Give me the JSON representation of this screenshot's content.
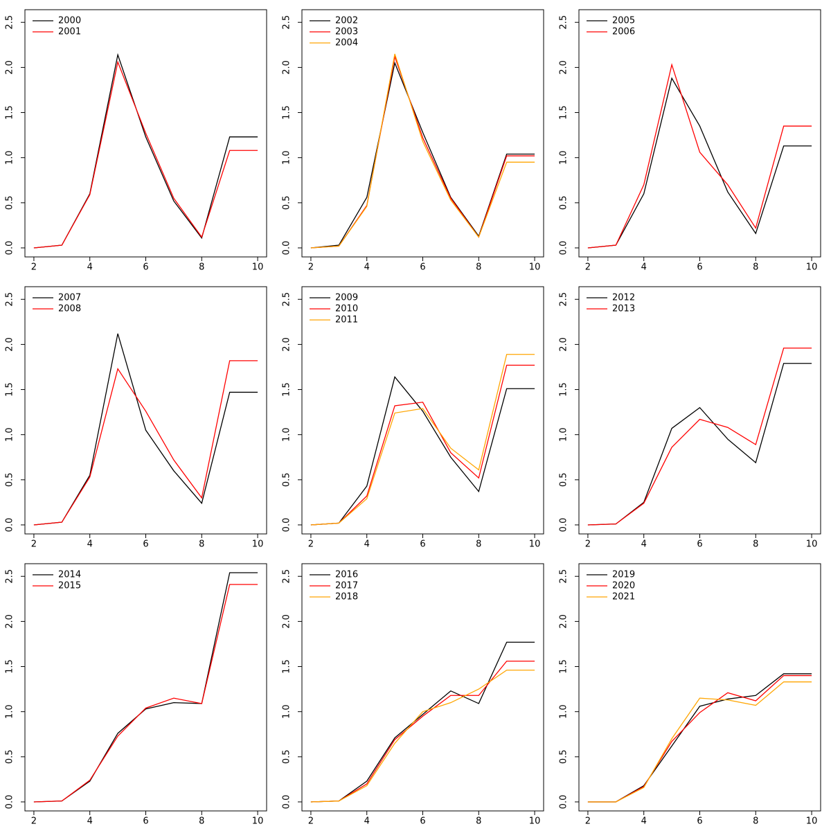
{
  "chart_data": [
    {
      "type": "line",
      "x": [
        2,
        3,
        4,
        5,
        6,
        7,
        8,
        9,
        10
      ],
      "xlim": [
        1.68,
        10.32
      ],
      "xticks": [
        2,
        4,
        6,
        8,
        10
      ],
      "ylim": [
        -0.1,
        2.64
      ],
      "yticks": [
        {
          "value": 0,
          "label": "0.0"
        },
        0.5,
        {
          "value": 1,
          "label": "1.0"
        },
        1.5,
        {
          "value": 2,
          "label": "2.0"
        },
        2.5
      ],
      "legend": "topleft",
      "series": [
        {
          "name": "2000",
          "color": "#000000",
          "values": [
            0,
            0.03,
            0.6,
            2.14,
            1.23,
            0.52,
            0.11,
            1.23,
            1.23
          ]
        },
        {
          "name": "2001",
          "color": "#ff0000",
          "values": [
            0,
            0.03,
            0.59,
            2.06,
            1.27,
            0.55,
            0.12,
            1.08,
            1.08
          ]
        }
      ]
    },
    {
      "type": "line",
      "x": [
        2,
        3,
        4,
        5,
        6,
        7,
        8,
        9,
        10
      ],
      "xlim": [
        1.68,
        10.32
      ],
      "xticks": [
        2,
        4,
        6,
        8,
        10
      ],
      "ylim": [
        -0.1,
        2.64
      ],
      "yticks": [
        {
          "value": 0,
          "label": "0.0"
        },
        0.5,
        {
          "value": 1,
          "label": "1.0"
        },
        1.5,
        {
          "value": 2,
          "label": "2.0"
        },
        2.5
      ],
      "legend": "topleft",
      "series": [
        {
          "name": "2002",
          "color": "#000000",
          "values": [
            0,
            0.03,
            0.56,
            2.05,
            1.28,
            0.56,
            0.13,
            1.04,
            1.04
          ]
        },
        {
          "name": "2003",
          "color": "#ff0000",
          "values": [
            0,
            0.02,
            0.47,
            2.12,
            1.22,
            0.55,
            0.12,
            1.02,
            1.02
          ]
        },
        {
          "name": "2004",
          "color": "#ffa500",
          "values": [
            0,
            0.02,
            0.46,
            2.15,
            1.18,
            0.53,
            0.12,
            0.95,
            0.95
          ]
        }
      ]
    },
    {
      "type": "line",
      "x": [
        2,
        3,
        4,
        5,
        6,
        7,
        8,
        9,
        10
      ],
      "xlim": [
        1.68,
        10.32
      ],
      "xticks": [
        2,
        4,
        6,
        8,
        10
      ],
      "ylim": [
        -0.1,
        2.64
      ],
      "yticks": [
        {
          "value": 0,
          "label": "0.0"
        },
        0.5,
        {
          "value": 1,
          "label": "1.0"
        },
        1.5,
        {
          "value": 2,
          "label": "2.0"
        },
        2.5
      ],
      "legend": "topleft",
      "series": [
        {
          "name": "2005",
          "color": "#000000",
          "values": [
            0,
            0.03,
            0.6,
            1.88,
            1.35,
            0.62,
            0.16,
            1.13,
            1.13
          ]
        },
        {
          "name": "2006",
          "color": "#ff0000",
          "values": [
            0,
            0.03,
            0.7,
            2.03,
            1.06,
            0.7,
            0.22,
            1.35,
            1.35
          ]
        }
      ]
    },
    {
      "type": "line",
      "x": [
        2,
        3,
        4,
        5,
        6,
        7,
        8,
        9,
        10
      ],
      "xlim": [
        1.68,
        10.32
      ],
      "xticks": [
        2,
        4,
        6,
        8,
        10
      ],
      "ylim": [
        -0.1,
        2.64
      ],
      "yticks": [
        {
          "value": 0,
          "label": "0.0"
        },
        0.5,
        {
          "value": 1,
          "label": "1.0"
        },
        1.5,
        {
          "value": 2,
          "label": "2.0"
        },
        2.5
      ],
      "legend": "topleft",
      "series": [
        {
          "name": "2007",
          "color": "#000000",
          "values": [
            0,
            0.03,
            0.55,
            2.12,
            1.05,
            0.6,
            0.24,
            1.47,
            1.47
          ]
        },
        {
          "name": "2008",
          "color": "#ff0000",
          "values": [
            0,
            0.03,
            0.53,
            1.73,
            1.26,
            0.72,
            0.3,
            1.82,
            1.82
          ]
        }
      ]
    },
    {
      "type": "line",
      "x": [
        2,
        3,
        4,
        5,
        6,
        7,
        8,
        9,
        10
      ],
      "xlim": [
        1.68,
        10.32
      ],
      "xticks": [
        2,
        4,
        6,
        8,
        10
      ],
      "ylim": [
        -0.1,
        2.64
      ],
      "yticks": [
        {
          "value": 0,
          "label": "0.0"
        },
        0.5,
        {
          "value": 1,
          "label": "1.0"
        },
        1.5,
        {
          "value": 2,
          "label": "2.0"
        },
        2.5
      ],
      "legend": "topleft",
      "series": [
        {
          "name": "2009",
          "color": "#000000",
          "values": [
            0,
            0.02,
            0.43,
            1.64,
            1.26,
            0.75,
            0.37,
            1.51,
            1.51
          ]
        },
        {
          "name": "2010",
          "color": "#ff0000",
          "values": [
            0,
            0.02,
            0.32,
            1.32,
            1.36,
            0.8,
            0.52,
            1.77,
            1.77
          ]
        },
        {
          "name": "2011",
          "color": "#ffa500",
          "values": [
            0,
            0.02,
            0.29,
            1.24,
            1.29,
            0.85,
            0.61,
            1.89,
            1.89
          ]
        }
      ]
    },
    {
      "type": "line",
      "x": [
        2,
        3,
        4,
        5,
        6,
        7,
        8,
        9,
        10
      ],
      "xlim": [
        1.68,
        10.32
      ],
      "xticks": [
        2,
        4,
        6,
        8,
        10
      ],
      "ylim": [
        -0.1,
        2.64
      ],
      "yticks": [
        {
          "value": 0,
          "label": "0.0"
        },
        0.5,
        {
          "value": 1,
          "label": "1.0"
        },
        1.5,
        {
          "value": 2,
          "label": "2.0"
        },
        2.5
      ],
      "legend": "topleft",
      "series": [
        {
          "name": "2012",
          "color": "#000000",
          "values": [
            0,
            0.01,
            0.25,
            1.07,
            1.3,
            0.95,
            0.69,
            1.79,
            1.79
          ]
        },
        {
          "name": "2013",
          "color": "#ff0000",
          "values": [
            0,
            0.01,
            0.24,
            0.86,
            1.17,
            1.08,
            0.89,
            1.96,
            1.96
          ]
        }
      ]
    },
    {
      "type": "line",
      "x": [
        2,
        3,
        4,
        5,
        6,
        7,
        8,
        9,
        10
      ],
      "xlim": [
        1.68,
        10.32
      ],
      "xticks": [
        2,
        4,
        6,
        8,
        10
      ],
      "ylim": [
        -0.1,
        2.64
      ],
      "yticks": [
        {
          "value": 0,
          "label": "0.0"
        },
        0.5,
        {
          "value": 1,
          "label": "1.0"
        },
        1.5,
        {
          "value": 2,
          "label": "2.0"
        },
        2.5
      ],
      "legend": "topleft",
      "series": [
        {
          "name": "2014",
          "color": "#000000",
          "values": [
            0,
            0.01,
            0.23,
            0.76,
            1.03,
            1.1,
            1.09,
            2.54,
            2.54
          ]
        },
        {
          "name": "2015",
          "color": "#ff0000",
          "values": [
            0,
            0.01,
            0.24,
            0.73,
            1.04,
            1.15,
            1.09,
            2.41,
            2.41
          ]
        }
      ]
    },
    {
      "type": "line",
      "x": [
        2,
        3,
        4,
        5,
        6,
        7,
        8,
        9,
        10
      ],
      "xlim": [
        1.68,
        10.32
      ],
      "xticks": [
        2,
        4,
        6,
        8,
        10
      ],
      "ylim": [
        -0.1,
        2.64
      ],
      "yticks": [
        {
          "value": 0,
          "label": "0.0"
        },
        0.5,
        {
          "value": 1,
          "label": "1.0"
        },
        1.5,
        {
          "value": 2,
          "label": "2.0"
        },
        2.5
      ],
      "legend": "topleft",
      "series": [
        {
          "name": "2016",
          "color": "#000000",
          "values": [
            0,
            0.01,
            0.23,
            0.71,
            0.97,
            1.23,
            1.09,
            1.77,
            1.77
          ]
        },
        {
          "name": "2017",
          "color": "#ff0000",
          "values": [
            0,
            0.01,
            0.2,
            0.69,
            0.95,
            1.18,
            1.18,
            1.56,
            1.56
          ]
        },
        {
          "name": "2018",
          "color": "#ffa500",
          "values": [
            0,
            0.01,
            0.18,
            0.65,
            1.0,
            1.1,
            1.25,
            1.46,
            1.46
          ]
        }
      ]
    },
    {
      "type": "line",
      "x": [
        2,
        3,
        4,
        5,
        6,
        7,
        8,
        9,
        10
      ],
      "xlim": [
        1.68,
        10.32
      ],
      "xticks": [
        2,
        4,
        6,
        8,
        10
      ],
      "ylim": [
        -0.1,
        2.64
      ],
      "yticks": [
        {
          "value": 0,
          "label": "0.0"
        },
        0.5,
        {
          "value": 1,
          "label": "1.0"
        },
        1.5,
        {
          "value": 2,
          "label": "2.0"
        },
        2.5
      ],
      "legend": "topleft",
      "series": [
        {
          "name": "2019",
          "color": "#000000",
          "values": [
            0,
            0,
            0.18,
            0.62,
            1.06,
            1.14,
            1.18,
            1.42,
            1.42
          ]
        },
        {
          "name": "2020",
          "color": "#ff0000",
          "values": [
            0,
            0,
            0.17,
            0.67,
            0.99,
            1.21,
            1.12,
            1.4,
            1.4
          ]
        },
        {
          "name": "2021",
          "color": "#ffa500",
          "values": [
            0,
            0,
            0.16,
            0.7,
            1.15,
            1.13,
            1.07,
            1.33,
            1.33
          ]
        }
      ]
    }
  ]
}
